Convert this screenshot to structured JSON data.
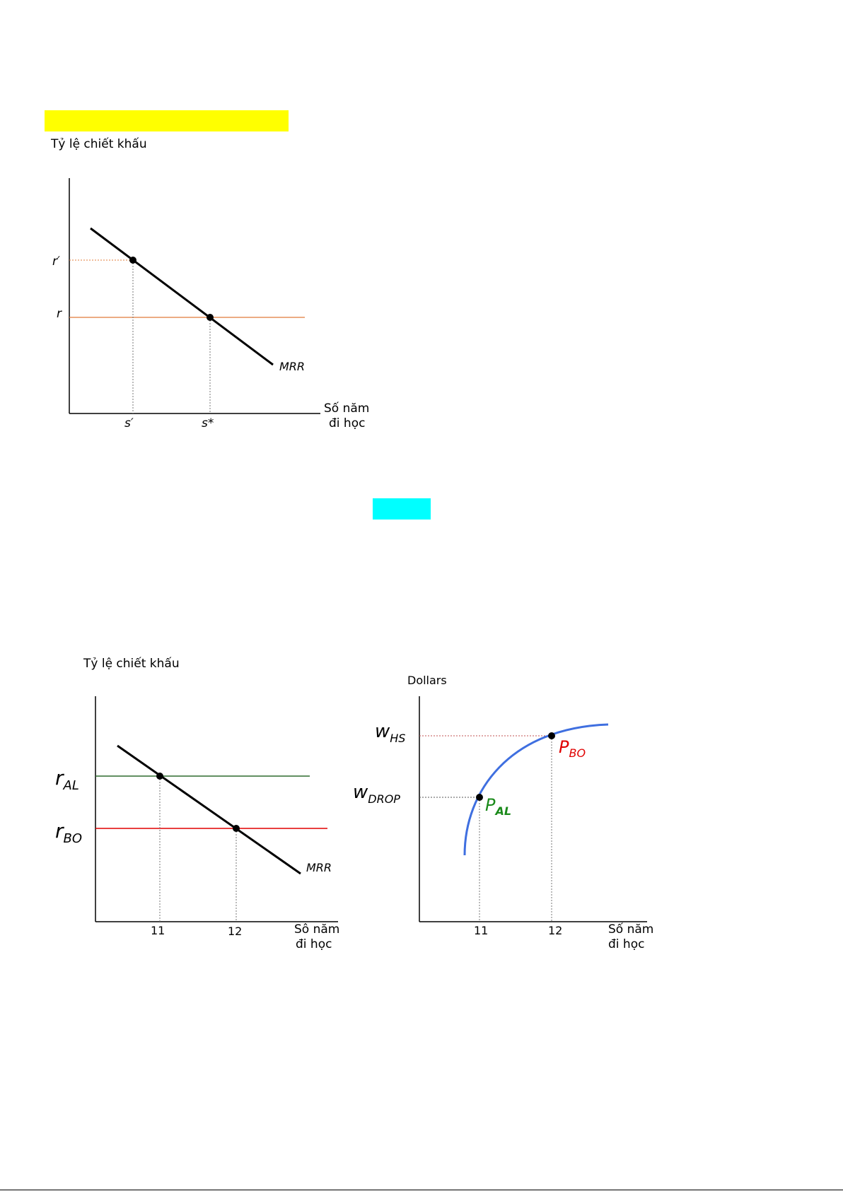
{
  "highlight_colors": {
    "yellow": "#ffff00",
    "cyan": "#00ffff"
  },
  "figure1": {
    "ylabel": "Tỷ lệ chiết khấu",
    "xlabel_line1": "Số năm",
    "xlabel_line2": "đi học",
    "curve_label": "MRR",
    "y_ticks": [
      "r′",
      "r"
    ],
    "x_ticks": [
      "s′",
      "s*"
    ],
    "line_color": "#e07b39"
  },
  "figure2_left": {
    "ylabel": "Tỷ lệ chiết khấu",
    "xlabel_line1": "Sô năm",
    "xlabel_line2": "đi học",
    "curve_label": "MRR",
    "r_al": {
      "main": "r",
      "sub": "AL",
      "color": "#2e6b2e"
    },
    "r_bo": {
      "main": "r",
      "sub": "BO",
      "color": "#e00000"
    },
    "x_ticks": [
      "11",
      "12"
    ]
  },
  "figure2_right": {
    "ylabel": "Dollars",
    "xlabel_line1": "Số năm",
    "xlabel_line2": "đi học",
    "w_hs": {
      "main": "w",
      "sub": "HS"
    },
    "w_drop": {
      "main": "w",
      "sub": "DROP"
    },
    "p_bo": {
      "main": "P",
      "sub": "BO",
      "color": "#e00000"
    },
    "p_al": {
      "main": "P",
      "sub": "AL",
      "color": "#1a8a1a"
    },
    "x_ticks": [
      "11",
      "12"
    ],
    "curve_color": "#3f6fe0"
  }
}
